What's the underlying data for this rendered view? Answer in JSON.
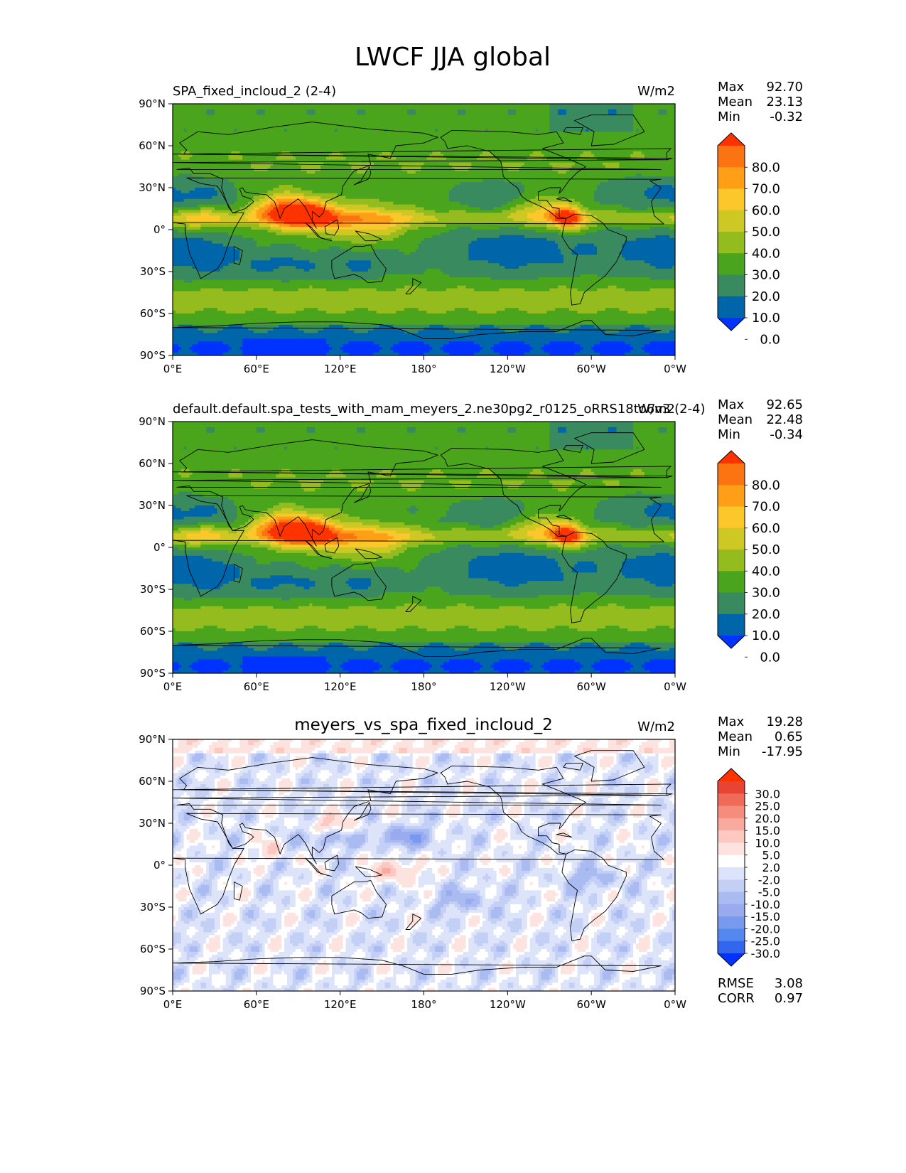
{
  "figure_title": "LWCF JJA global",
  "colors": {
    "seq": [
      "#0033ff",
      "#0066aa",
      "#3a8a60",
      "#4aa51c",
      "#94bc1e",
      "#cdc823",
      "#fbc72a",
      "#fe9f17",
      "#fc7411",
      "#ff3300"
    ],
    "diff": [
      "#0033ff",
      "#3366ee",
      "#5588ee",
      "#7799ee",
      "#99aaee",
      "#aabbf2",
      "#c4cff6",
      "#dde4fa",
      "#ffffff",
      "#fde3e0",
      "#fcc8c0",
      "#f9aa9e",
      "#f58c7c",
      "#f06a58",
      "#e84434",
      "#ff3300"
    ],
    "land": "#000000"
  },
  "chart_data": [
    {
      "type": "heatmap",
      "panel": "top",
      "title": "SPA_fixed_incloud_2 (2-4)",
      "units": "W/m2",
      "stats": {
        "max_label": "Max",
        "max": "92.70",
        "mean_label": "Mean",
        "mean": "23.13",
        "min_label": "Min",
        "min": "-0.32"
      },
      "xticks": [
        "0°E",
        "60°E",
        "120°E",
        "180°",
        "120°W",
        "60°W",
        "0°W"
      ],
      "yticks": [
        "90°N",
        "60°N",
        "30°N",
        "0°",
        "30°S",
        "60°S",
        "90°S"
      ],
      "xlim": [
        0,
        360
      ],
      "ylim": [
        -90,
        90
      ],
      "colorbar_levels": [
        "80.0",
        "70.0",
        "60.0",
        "50.0",
        "40.0",
        "30.0",
        "20.0",
        "10.0",
        "0.0"
      ],
      "value_range": [
        -0.32,
        92.7
      ]
    },
    {
      "type": "heatmap",
      "panel": "middle",
      "title": "default.default.spa_tests_with_mam_meyers_2.ne30pg2_r0125_oRRS18to6v3 (2-4)",
      "units": "W/m2",
      "stats": {
        "max_label": "Max",
        "max": "92.65",
        "mean_label": "Mean",
        "mean": "22.48",
        "min_label": "Min",
        "min": "-0.34"
      },
      "xticks": [
        "0°E",
        "60°E",
        "120°E",
        "180°",
        "120°W",
        "60°W",
        "0°W"
      ],
      "yticks": [
        "90°N",
        "60°N",
        "30°N",
        "0°",
        "30°S",
        "60°S",
        "90°S"
      ],
      "xlim": [
        0,
        360
      ],
      "ylim": [
        -90,
        90
      ],
      "colorbar_levels": [
        "80.0",
        "70.0",
        "60.0",
        "50.0",
        "40.0",
        "30.0",
        "20.0",
        "10.0",
        "0.0"
      ],
      "value_range": [
        -0.34,
        92.65
      ]
    },
    {
      "type": "heatmap",
      "panel": "bottom",
      "title": "meyers_vs_spa_fixed_incloud_2",
      "units": "W/m2",
      "stats": {
        "max_label": "Max",
        "max": "19.28",
        "mean_label": "Mean",
        "mean": "0.65",
        "min_label": "Min",
        "min": "-17.95"
      },
      "xticks": [
        "0°E",
        "60°E",
        "120°E",
        "180°",
        "120°W",
        "60°W",
        "0°W"
      ],
      "yticks": [
        "90°N",
        "60°N",
        "30°N",
        "0°",
        "30°S",
        "60°S",
        "90°S"
      ],
      "xlim": [
        0,
        360
      ],
      "ylim": [
        -90,
        90
      ],
      "colorbar_levels": [
        "30.0",
        "25.0",
        "20.0",
        "15.0",
        "10.0",
        "5.0",
        "2.0",
        "-2.0",
        "-5.0",
        "-10.0",
        "-15.0",
        "-20.0",
        "-25.0",
        "-30.0"
      ],
      "value_range": [
        -17.95,
        19.28
      ],
      "extra_stats": {
        "rmse_label": "RMSE",
        "rmse": "3.08",
        "corr_label": "CORR",
        "corr": "0.97"
      }
    }
  ]
}
